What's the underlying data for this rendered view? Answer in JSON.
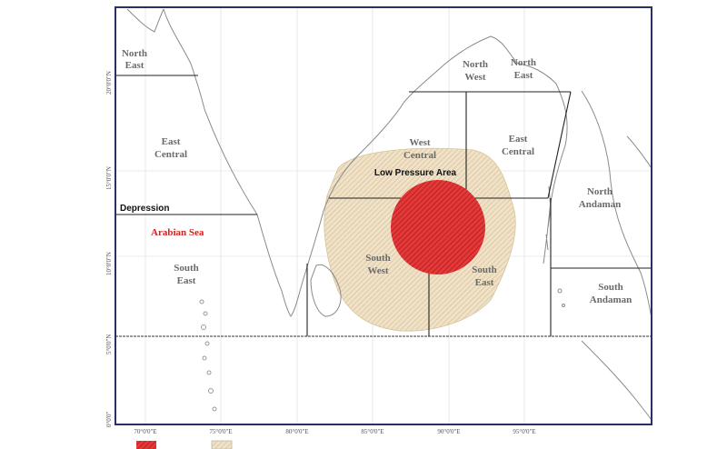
{
  "map": {
    "latitude_ticks": [
      "20°0'0\"N",
      "15°0'0\"N",
      "10°0'0\"N",
      "5°0'0\"N",
      "0°0'0\""
    ],
    "longitude_ticks": [
      "70°0'0\"E",
      "75°0'0\"E",
      "80°0'0\"E",
      "85°0'0\"E",
      "90°0'0\"E",
      "95°0'0\"E"
    ],
    "regions": {
      "as_north_east": [
        "North",
        "East"
      ],
      "as_east_central": [
        "East",
        "Central"
      ],
      "as_south_east": [
        "South",
        "East"
      ],
      "bob_north_west": [
        "North",
        "West"
      ],
      "bob_north_east": [
        "North",
        "East"
      ],
      "bob_west_central": [
        "West",
        "Central"
      ],
      "bob_east_central": [
        "East",
        "Central"
      ],
      "bob_south_west": [
        "South",
        "West"
      ],
      "bob_south_east": [
        "South",
        "East"
      ],
      "north_andaman": [
        "North",
        "Andaman"
      ],
      "south_andaman": [
        "South",
        "Andaman"
      ]
    },
    "depression_label": "Depression",
    "sea_label": "Arabian Sea",
    "low_pressure_label": "Low Pressure Area",
    "colors": {
      "depression": "#d42a2a",
      "low_pressure": "#e6d3b0",
      "sea_label": "#d42020",
      "frame": "#2a2f6a"
    }
  }
}
